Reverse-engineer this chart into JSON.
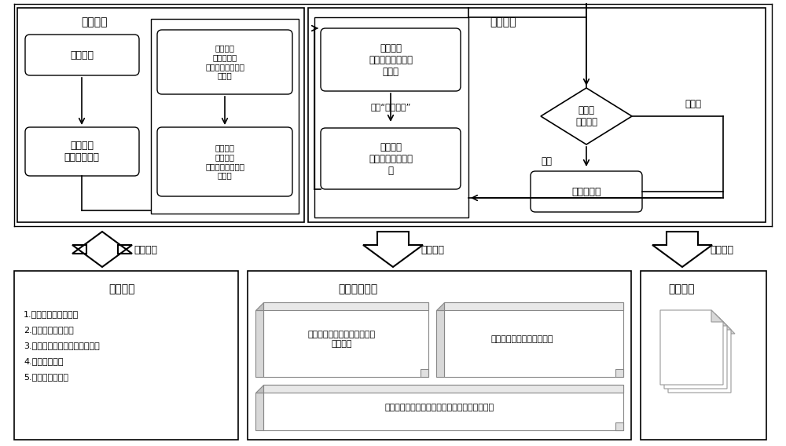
{
  "bg_color": "#ffffff",
  "fig_width": 10.0,
  "fig_height": 5.68,
  "texts": {
    "plan_title": "计划项目",
    "exec_title": "项目执行",
    "create_proj": "创建项目",
    "select_template": "选择适用\n的轨道图模板",
    "assign_roles": "分配角色\n及项目成员\n（项目开始前或进\n行中）",
    "adjust_plan": "调整项目\n轨道计划\n（项目开始前或进\n行中）",
    "complete_input": "完成单个\n节点的输入条件文\n件上传",
    "ref_tool": "参考“管理工具”",
    "complete_output": "完成该节\n点输出成果文件上\n传",
    "launch_sign": "发起会\n签或审批",
    "fail": "不通过",
    "pass": "通过",
    "complete_node": "完成该节点",
    "auto_trigger": "自动触发",
    "auto_form1": "自动形成",
    "auto_form2": "自动形成",
    "msg_center": "消息中心",
    "msg1": "1.被分配到项目的通知",
    "msg2": "2.项目调整计划通知",
    "msg3": "3.成果会签或审核不通过的通知",
    "msg4": "4.更换成员通知",
    "msg5": "5.其他通知。。。",
    "report_title": "项目一览报表",
    "scroll1": "项目工作节点完成、逾期、未\n完成占比",
    "scroll2": "各专业工作节点完成率统计",
    "scroll3": "各节点输入条件、输出成果文件明细及缺失原因",
    "calendar_title": "项目日历"
  }
}
